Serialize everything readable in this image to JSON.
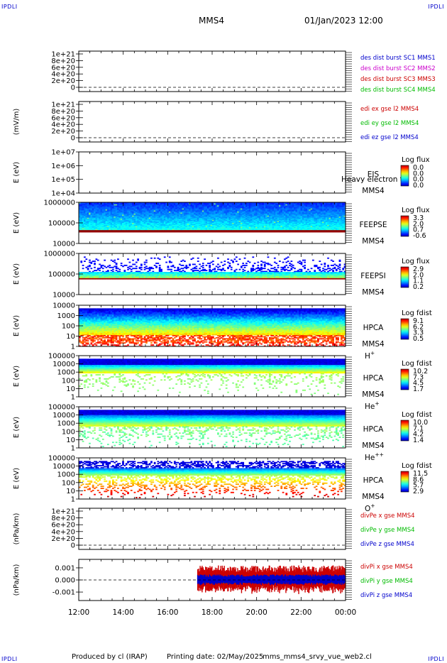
{
  "header": {
    "spacecraft": "MMS4",
    "datetime": "01/Jan/2023 12:00",
    "corner_label": "IPDLI"
  },
  "footer": {
    "produced_by": "Produced by cl (IRAP)",
    "printing_date": "Printing date: 02/May/2025",
    "script_name": "mms_mms4_srvy_vue_web2.cl"
  },
  "time_axis": {
    "ticks": [
      "12:00",
      "14:00",
      "16:00",
      "18:00",
      "20:00",
      "22:00",
      "00:00"
    ],
    "start_hour": 12,
    "end_hour": 24
  },
  "chart_data": [
    {
      "id": "des-dist",
      "type": "line",
      "ylabel": "",
      "yticks": [
        "1e+21",
        "8e+20",
        "6e+20",
        "4e+20",
        "2e+20",
        "0"
      ],
      "ylim": [
        0,
        1.1e+21
      ],
      "dashed_zero": true,
      "series": [
        {
          "name": "des dist burst SC1 MMS1",
          "color": "#0000cc"
        },
        {
          "name": "des dist burst SC2 MMS2",
          "color": "#cc00cc"
        },
        {
          "name": "des dist burst SC3 MMS3",
          "color": "#cc0000"
        },
        {
          "name": "des dist burst SC4 MMS4",
          "color": "#00bb00"
        }
      ]
    },
    {
      "id": "edi",
      "type": "line",
      "ylabel": "(mV/m)",
      "yticks": [
        "1e+21",
        "8e+20",
        "6e+20",
        "4e+20",
        "2e+20",
        "0"
      ],
      "ylim": [
        0,
        1.1e+21
      ],
      "dashed_zero": true,
      "series": [
        {
          "name": "edi ex gse l2 MMS4",
          "color": "#cc0000"
        },
        {
          "name": "edi ey gse l2 MMS4",
          "color": "#00bb00"
        },
        {
          "name": "edi ez gse l2 MMS4",
          "color": "#0000cc"
        }
      ]
    },
    {
      "id": "eis",
      "type": "heatmap",
      "ylabel": "E (eV)",
      "yticks": [
        "1e+07",
        "1e+06",
        "1e+05",
        "1e+04"
      ],
      "ylog": [
        4,
        7
      ],
      "instrument": [
        "EIS",
        "MMS4"
      ],
      "overlay_text": "Heavy electron to",
      "colorbar_title": "Log flux",
      "colorbar_ticks": [
        "0.0",
        "0.0",
        "0.0",
        "0.0"
      ],
      "band": null
    },
    {
      "id": "feepse",
      "type": "heatmap",
      "ylabel": "E (eV)",
      "yticks": [
        "1000000",
        "100000",
        "10000"
      ],
      "ylog": [
        4,
        6
      ],
      "instrument": [
        "FEEPSE",
        "MMS4"
      ],
      "colorbar_title": "Log flux",
      "colorbar_ticks": [
        "3.3",
        "2.0",
        "0.7",
        "-0.6"
      ],
      "band": {
        "style": "feepse",
        "time_range": [
          12.0,
          24.0
        ],
        "e_range": [
          4.6,
          6.0
        ]
      }
    },
    {
      "id": "feepsi",
      "type": "heatmap",
      "ylabel": "E (eV)",
      "yticks": [
        "1000000",
        "100000",
        "10000"
      ],
      "ylog": [
        4,
        6
      ],
      "instrument": [
        "FEEPSI",
        "MMS4"
      ],
      "colorbar_title": "Log flux",
      "colorbar_ticks": [
        "2.9",
        "2.0",
        "1.1",
        "0.2"
      ],
      "band": {
        "style": "feepsi",
        "time_range": [
          12.0,
          24.0
        ],
        "e_range": [
          4.8,
          5.9
        ]
      }
    },
    {
      "id": "hpca-h",
      "type": "heatmap",
      "ylabel": "E (eV)",
      "yticks": [
        "10000",
        "1000",
        "100",
        "10",
        "1"
      ],
      "ylog": [
        0,
        4.3
      ],
      "instrument": [
        "HPCA",
        "MMS4",
        "H",
        "+"
      ],
      "colorbar_title": "Log fdist",
      "colorbar_ticks": [
        "9.1",
        "6.2",
        "3.3",
        "0.5"
      ],
      "band": {
        "style": "hpca-h",
        "time_range": [
          12.0,
          24.0
        ],
        "e_range": [
          0.3,
          4.2
        ]
      }
    },
    {
      "id": "hpca-he",
      "type": "heatmap",
      "ylabel": "E (eV)",
      "yticks": [
        "100000",
        "10000",
        "1000",
        "100",
        "10",
        "1"
      ],
      "ylog": [
        0,
        5
      ],
      "instrument": [
        "HPCA",
        "MMS4",
        "He",
        "+"
      ],
      "colorbar_title": "Log fdist",
      "colorbar_ticks": [
        "10.2",
        "7.3",
        "4.5",
        "1.7"
      ],
      "band": {
        "style": "hpca-he",
        "time_range": [
          12.0,
          24.0
        ],
        "e_range": [
          0.5,
          4.3
        ]
      }
    },
    {
      "id": "hpca-hepp",
      "type": "heatmap",
      "ylabel": "E (eV)",
      "yticks": [
        "100000",
        "10000",
        "1000",
        "100",
        "10",
        "1"
      ],
      "ylog": [
        0,
        5
      ],
      "instrument": [
        "HPCA",
        "MMS4",
        "He",
        "++"
      ],
      "colorbar_title": "Log fdist",
      "colorbar_ticks": [
        "10.0",
        "7.1",
        "4.2",
        "1.4"
      ],
      "band": {
        "style": "hpca-hepp",
        "time_range": [
          12.0,
          24.0
        ],
        "e_range": [
          0.2,
          4.5
        ]
      }
    },
    {
      "id": "hpca-o",
      "type": "heatmap",
      "ylabel": "E (eV)",
      "yticks": [
        "100000",
        "10000",
        "1000",
        "100",
        "10",
        "1"
      ],
      "ylog": [
        0,
        5
      ],
      "instrument": [
        "HPCA",
        "MMS4",
        "O",
        "+"
      ],
      "colorbar_title": "Log fdist",
      "colorbar_ticks": [
        "11.5",
        "8.6",
        "5.7",
        "2.9"
      ],
      "band": {
        "style": "hpca-o",
        "time_range": [
          12.0,
          24.0
        ],
        "e_range": [
          0.2,
          4.0
        ]
      }
    },
    {
      "id": "divpe",
      "type": "line",
      "ylabel": "(nPa/km)",
      "yticks": [
        "1e+21",
        "8e+20",
        "6e+20",
        "4e+20",
        "2e+20",
        "0"
      ],
      "ylim": [
        0,
        1.1e+21
      ],
      "dashed_zero": true,
      "series": [
        {
          "name": "divPe x gse MMS4",
          "color": "#cc0000"
        },
        {
          "name": "divPe y gse MMS4",
          "color": "#00bb00"
        },
        {
          "name": "divPe z gse MMS4",
          "color": "#0000cc"
        }
      ]
    },
    {
      "id": "divpi",
      "type": "line",
      "ylabel": "(nPa/km)",
      "yticks": [
        "0.001",
        "0.000",
        "-0.001"
      ],
      "ylim": [
        -0.0017,
        0.0017
      ],
      "dashed_zero": true,
      "data_time_range": [
        17.35,
        24.0
      ],
      "series": [
        {
          "name": "divPi x gse MMS4",
          "color": "#cc0000",
          "amplitude": 0.0012
        },
        {
          "name": "divPi y gse MMS4",
          "color": "#00bb00",
          "amplitude": 0.0003
        },
        {
          "name": "divPi z gse MMS4",
          "color": "#0000cc",
          "amplitude": 0.00045
        }
      ]
    }
  ]
}
